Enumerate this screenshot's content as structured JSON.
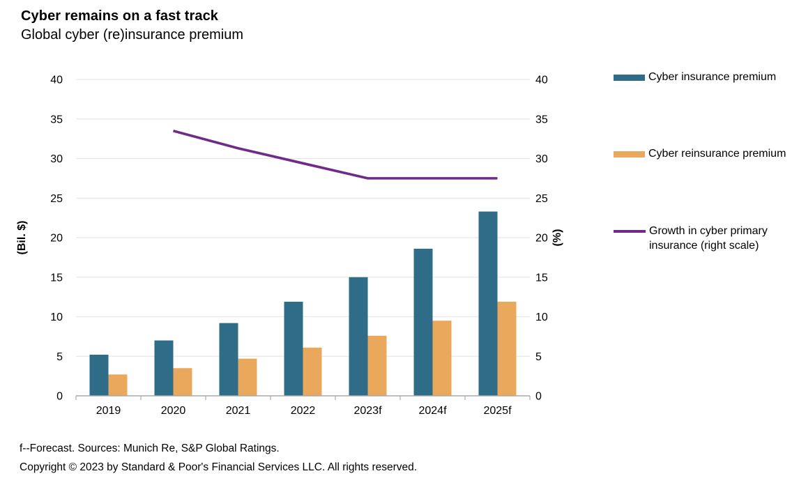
{
  "header": {
    "title": "Cyber remains on a fast track",
    "subtitle": "Global cyber (re)insurance premium"
  },
  "chart_data": {
    "type": "bar",
    "categories": [
      "2019",
      "2020",
      "2021",
      "2022",
      "2023f",
      "2024f",
      "2025f"
    ],
    "series": [
      {
        "name": "Cyber insurance premium",
        "type": "bar",
        "axis": "left",
        "color": "#2E6C87",
        "values": [
          5.2,
          7.0,
          9.2,
          11.9,
          15.0,
          18.6,
          23.3
        ]
      },
      {
        "name": "Cyber reinsurance premium",
        "type": "bar",
        "axis": "left",
        "color": "#E9A85C",
        "values": [
          2.7,
          3.5,
          4.7,
          6.1,
          7.6,
          9.5,
          11.9
        ]
      },
      {
        "name": "Growth in cyber primary insurance (right scale)",
        "type": "line",
        "axis": "right",
        "color": "#6F2B87",
        "values": [
          null,
          33.5,
          31.3,
          29.4,
          27.5,
          27.5,
          27.5
        ]
      }
    ],
    "left_axis": {
      "label": "(Bil. $)",
      "min": 0,
      "max": 40,
      "step": 5
    },
    "right_axis": {
      "label": "(%)",
      "min": 0,
      "max": 40,
      "step": 5
    },
    "grid": "horizontal",
    "grid_color": "#E7E7E7",
    "axis_color": "#A9A9A9",
    "legend_position": "right"
  },
  "footer": {
    "line1": "f--Forecast. Sources: Munich Re, S&P Global Ratings.",
    "line2": "Copyright © 2023 by Standard & Poor's Financial Services LLC. All rights reserved."
  }
}
